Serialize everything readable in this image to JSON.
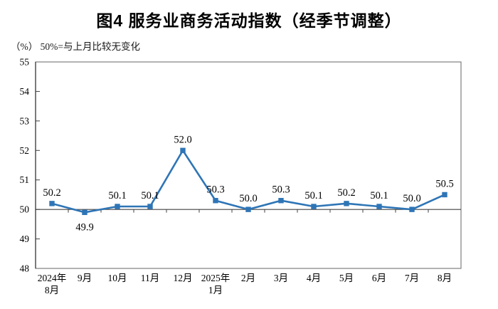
{
  "colors": {
    "line": "#2E75B6",
    "marker": "#2E75B6",
    "axis": "#404040",
    "border": "#7f7f7f",
    "text": "#000000"
  },
  "chart_data": {
    "type": "line",
    "title": "图4 服务业商务活动指数（经季节调整）",
    "unit_note": "（%） 50%=与上月比较无变化",
    "categories": [
      [
        "2024年",
        "8月"
      ],
      [
        "9月"
      ],
      [
        "10月"
      ],
      [
        "11月"
      ],
      [
        "12月"
      ],
      [
        "2025年",
        "1月"
      ],
      [
        "2月"
      ],
      [
        "3月"
      ],
      [
        "4月"
      ],
      [
        "5月"
      ],
      [
        "6月"
      ],
      [
        "7月"
      ],
      [
        "8月"
      ]
    ],
    "values": [
      50.2,
      49.9,
      50.1,
      50.1,
      52.0,
      50.3,
      50.0,
      50.3,
      50.1,
      50.2,
      50.1,
      50.0,
      50.5
    ],
    "point_labels": [
      "50.2",
      "49.9",
      "50.1",
      "50.1",
      "52.0",
      "50.3",
      "50.0",
      "50.3",
      "50.1",
      "50.2",
      "50.1",
      "50.0",
      "50.5"
    ],
    "labels_below_indices": [
      1
    ],
    "ylim": [
      48,
      55
    ],
    "ytick_step": 1,
    "yticks": [
      48,
      49,
      50,
      51,
      52,
      53,
      54,
      55
    ],
    "x_axis_cross": 50,
    "grid": false,
    "legend": false,
    "marker_shape": "square"
  }
}
